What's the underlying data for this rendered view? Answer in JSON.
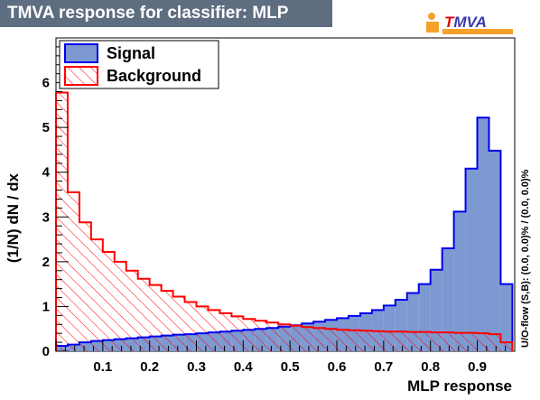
{
  "header": {
    "title": "TMVA response for classifier: MLP",
    "logo_text": "TMVA"
  },
  "colors": {
    "signal_fill": "#7d99d1",
    "signal_line": "#0000ee",
    "background_line": "#ff0000",
    "title_bg": "#5e6e80",
    "logo_orange": "#f7a12d"
  },
  "chart_data": {
    "type": "histogram",
    "xlabel": "MLP response",
    "ylabel": "(1/N) dN  /  dx",
    "side_label": "U/O-flow (S,B): (0.0, 0.0)% / (0.0, 0.0)%",
    "xlim": [
      0.0,
      0.98
    ],
    "ylim": [
      0,
      7
    ],
    "bin_width": 0.025,
    "x_ticks": [
      "0.1",
      "0.2",
      "0.3",
      "0.4",
      "0.5",
      "0.6",
      "0.7",
      "0.8",
      "0.9"
    ],
    "y_ticks": [
      "0",
      "1",
      "2",
      "3",
      "4",
      "5",
      "6"
    ],
    "legend": [
      {
        "name": "Signal"
      },
      {
        "name": "Background"
      }
    ],
    "series": [
      {
        "name": "Signal",
        "values": [
          0.12,
          0.15,
          0.2,
          0.23,
          0.25,
          0.27,
          0.29,
          0.31,
          0.33,
          0.35,
          0.37,
          0.38,
          0.4,
          0.42,
          0.44,
          0.46,
          0.48,
          0.5,
          0.52,
          0.55,
          0.58,
          0.62,
          0.66,
          0.7,
          0.74,
          0.79,
          0.85,
          0.92,
          1.02,
          1.15,
          1.3,
          1.5,
          1.82,
          2.3,
          3.12,
          4.08,
          5.22,
          4.48,
          1.5
        ]
      },
      {
        "name": "Background",
        "values": [
          5.78,
          3.55,
          2.88,
          2.5,
          2.22,
          2.0,
          1.8,
          1.62,
          1.48,
          1.35,
          1.22,
          1.1,
          1.0,
          0.92,
          0.85,
          0.78,
          0.72,
          0.68,
          0.64,
          0.6,
          0.57,
          0.54,
          0.52,
          0.5,
          0.48,
          0.47,
          0.46,
          0.45,
          0.44,
          0.44,
          0.43,
          0.43,
          0.42,
          0.42,
          0.41,
          0.41,
          0.4,
          0.38,
          0.2
        ]
      }
    ]
  }
}
